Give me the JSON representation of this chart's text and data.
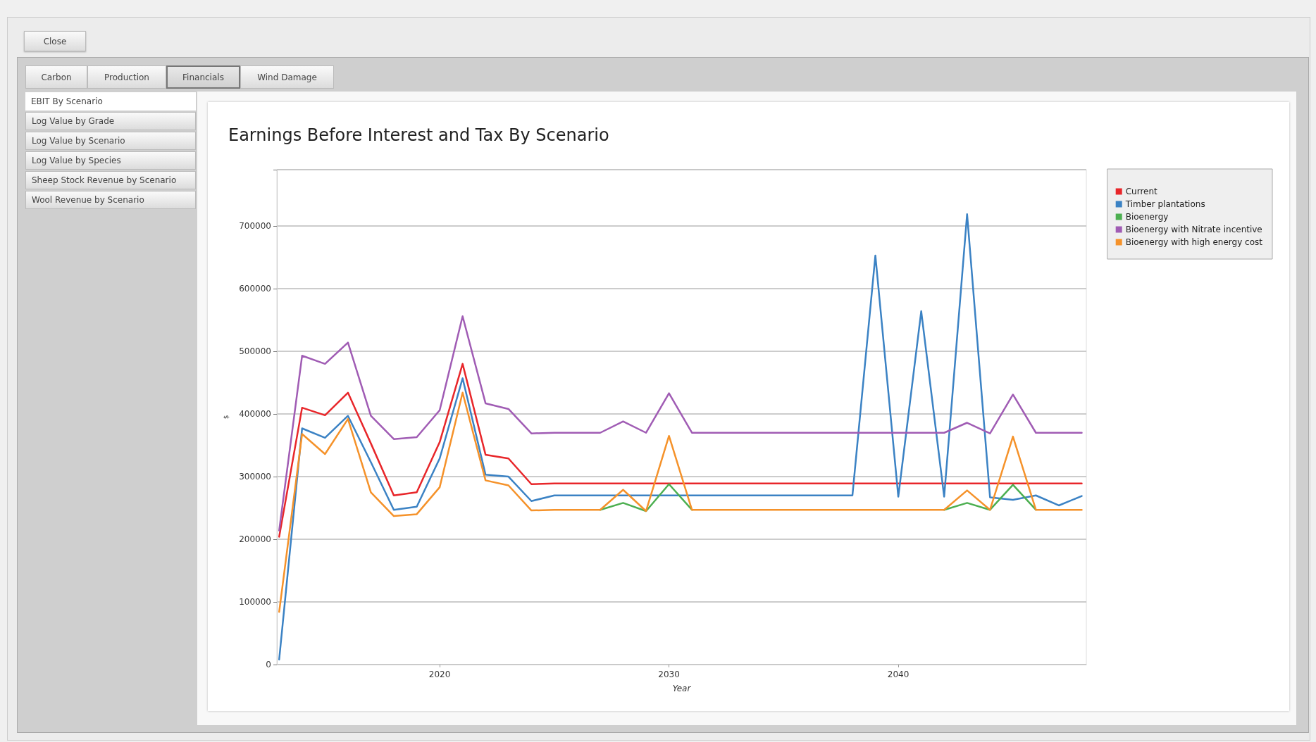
{
  "chart_data": {
    "type": "line",
    "title": "Earnings Before Interest and Tax By Scenario",
    "xlabel": "Year",
    "ylabel": "$",
    "annotations": [
      "Close",
      "Carbon",
      "Production",
      "Financials",
      "Wind Damage",
      "EBIT By Scenario",
      "Log Value by Grade",
      "Log Value by Scenario",
      "Log Value by Species",
      "Sheep Stock Revenue by Scenario",
      "Wool Revenue by Scenario"
    ],
    "x": [
      2013,
      2014,
      2015,
      2016,
      2017,
      2018,
      2019,
      2020,
      2021,
      2022,
      2023,
      2024,
      2025,
      2026,
      2027,
      2028,
      2029,
      2030,
      2031,
      2032,
      2033,
      2034,
      2035,
      2036,
      2037,
      2038,
      2039,
      2040,
      2041,
      2042,
      2043,
      2044,
      2045,
      2046,
      2047,
      2048
    ],
    "series": [
      {
        "name": "Current",
        "color": "#e8262a",
        "values": [
          204000,
          410000,
          398000,
          434000,
          353000,
          270000,
          275000,
          355000,
          480000,
          335000,
          329000,
          288000,
          289000,
          289000,
          289000,
          289000,
          289000,
          289000,
          289000,
          289000,
          289000,
          289000,
          289000,
          289000,
          289000,
          289000,
          289000,
          289000,
          289000,
          289000,
          289000,
          289000,
          289000,
          289000,
          289000,
          289000
        ]
      },
      {
        "name": "Timber plantations",
        "color": "#3b82c4",
        "values": [
          8000,
          377000,
          362000,
          397000,
          323000,
          247000,
          252000,
          329000,
          457000,
          303000,
          300000,
          261000,
          270000,
          270000,
          270000,
          270000,
          270000,
          270000,
          270000,
          270000,
          270000,
          270000,
          270000,
          270000,
          270000,
          270000,
          653000,
          268000,
          564000,
          268000,
          719000,
          267000,
          263000,
          270000,
          254000,
          269000
        ]
      },
      {
        "name": "Bioenergy",
        "color": "#4caf50",
        "values": [
          null,
          null,
          null,
          null,
          null,
          null,
          null,
          null,
          null,
          null,
          null,
          null,
          null,
          null,
          247000,
          258000,
          245000,
          288000,
          247000,
          null,
          null,
          null,
          null,
          null,
          null,
          null,
          null,
          null,
          null,
          247000,
          258000,
          247000,
          287000,
          247000,
          null,
          null
        ]
      },
      {
        "name": "Bioenergy with Nitrate incentive",
        "color": "#a05cb4",
        "values": [
          214000,
          493000,
          480000,
          514000,
          397000,
          360000,
          363000,
          406000,
          556000,
          417000,
          408000,
          369000,
          370000,
          370000,
          370000,
          388000,
          370000,
          433000,
          370000,
          370000,
          370000,
          370000,
          370000,
          370000,
          370000,
          370000,
          370000,
          370000,
          370000,
          370000,
          386000,
          369000,
          431000,
          370000,
          370000,
          370000
        ]
      },
      {
        "name": "Bioenergy with high energy cost",
        "color": "#f5922a",
        "values": [
          84000,
          368000,
          336000,
          392000,
          275000,
          237000,
          240000,
          283000,
          434000,
          294000,
          286000,
          246000,
          247000,
          247000,
          247000,
          279000,
          245000,
          365000,
          247000,
          247000,
          247000,
          247000,
          247000,
          247000,
          247000,
          247000,
          247000,
          247000,
          247000,
          247000,
          278000,
          247000,
          364000,
          247000,
          247000,
          247000
        ]
      }
    ],
    "xlim": [
      2012.9,
      2048.2
    ],
    "xticks": [
      2020,
      2030,
      2040
    ],
    "ylim": [
      0,
      790000
    ],
    "yticks": [
      0,
      100000,
      200000,
      300000,
      400000,
      500000,
      600000,
      700000
    ],
    "grid": "y",
    "legend": "top right",
    "marker": "none",
    "line_style": "solid"
  }
}
